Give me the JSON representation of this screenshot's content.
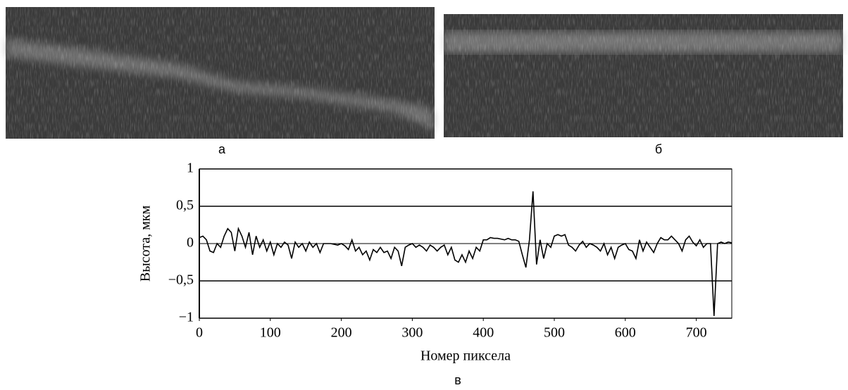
{
  "panel_labels": [
    "а",
    "б",
    "в"
  ],
  "chart_data": {
    "type": "line",
    "x_label": "Номер пиксела",
    "y_label": "Высота, мкм",
    "xlim": [
      0,
      750
    ],
    "ylim": [
      -1,
      1
    ],
    "xticks": [
      0,
      100,
      200,
      300,
      400,
      500,
      600,
      700
    ],
    "yticks": [
      {
        "value": -1,
        "label": "−1"
      },
      {
        "value": -0.5,
        "label": "−0,5"
      },
      0,
      {
        "value": 0.5,
        "label": "0,5"
      },
      1
    ],
    "grid": true,
    "color": "#000000",
    "x": [
      0,
      5,
      10,
      15,
      20,
      25,
      30,
      35,
      40,
      45,
      50,
      55,
      60,
      65,
      70,
      75,
      80,
      85,
      90,
      95,
      100,
      105,
      110,
      115,
      120,
      125,
      130,
      135,
      140,
      145,
      150,
      155,
      160,
      165,
      170,
      175,
      180,
      185,
      190,
      195,
      200,
      205,
      210,
      215,
      220,
      225,
      230,
      235,
      240,
      245,
      250,
      255,
      260,
      265,
      270,
      275,
      280,
      285,
      290,
      295,
      300,
      305,
      310,
      315,
      320,
      325,
      330,
      335,
      340,
      345,
      350,
      355,
      360,
      365,
      370,
      375,
      380,
      385,
      390,
      395,
      400,
      405,
      410,
      415,
      420,
      425,
      430,
      435,
      440,
      445,
      450,
      455,
      460,
      465,
      470,
      475,
      480,
      485,
      490,
      495,
      500,
      505,
      510,
      515,
      520,
      525,
      530,
      535,
      540,
      545,
      550,
      555,
      560,
      565,
      570,
      575,
      580,
      585,
      590,
      595,
      600,
      605,
      610,
      615,
      620,
      625,
      630,
      635,
      640,
      645,
      650,
      655,
      660,
      665,
      670,
      675,
      680,
      685,
      690,
      695,
      700,
      705,
      710,
      715,
      720,
      725,
      730,
      735,
      740,
      745,
      750
    ],
    "values": [
      0.08,
      0.1,
      0.05,
      -0.1,
      -0.12,
      0.0,
      -0.05,
      0.1,
      0.2,
      0.15,
      -0.1,
      0.2,
      0.1,
      -0.05,
      0.15,
      -0.15,
      0.1,
      -0.05,
      0.05,
      -0.1,
      0.02,
      -0.15,
      0.0,
      -0.05,
      0.02,
      -0.02,
      -0.2,
      0.02,
      -0.05,
      0.0,
      -0.1,
      0.02,
      -0.05,
      0.0,
      -0.12,
      0.0,
      0.0,
      0.0,
      -0.01,
      -0.02,
      0.0,
      -0.03,
      -0.08,
      0.05,
      -0.1,
      -0.05,
      -0.15,
      -0.1,
      -0.22,
      -0.08,
      -0.12,
      -0.05,
      -0.12,
      -0.1,
      -0.2,
      -0.05,
      -0.1,
      -0.3,
      -0.05,
      -0.02,
      0.0,
      -0.05,
      -0.02,
      -0.05,
      -0.1,
      -0.02,
      -0.05,
      -0.1,
      -0.05,
      -0.02,
      -0.15,
      -0.05,
      -0.22,
      -0.25,
      -0.15,
      -0.25,
      -0.1,
      -0.2,
      -0.05,
      -0.1,
      0.05,
      0.05,
      0.08,
      0.07,
      0.07,
      0.06,
      0.05,
      0.07,
      0.05,
      0.05,
      0.03,
      -0.15,
      -0.32,
      0.05,
      0.7,
      -0.28,
      0.05,
      -0.2,
      0.0,
      -0.05,
      0.1,
      0.12,
      0.1,
      0.12,
      -0.02,
      -0.05,
      -0.1,
      -0.02,
      0.03,
      -0.05,
      0.0,
      -0.02,
      -0.05,
      -0.1,
      0.0,
      -0.15,
      -0.05,
      -0.2,
      -0.05,
      -0.02,
      0.0,
      -0.08,
      -0.1,
      -0.2,
      0.05,
      -0.1,
      0.02,
      -0.05,
      -0.12,
      0.0,
      0.08,
      0.05,
      0.05,
      0.1,
      0.05,
      0.0,
      -0.1,
      0.05,
      0.1,
      0.02,
      -0.03,
      0.05,
      -0.05,
      0.0,
      0.0,
      -0.97,
      0.0,
      0.02,
      0.0,
      0.02,
      0.01
    ]
  }
}
